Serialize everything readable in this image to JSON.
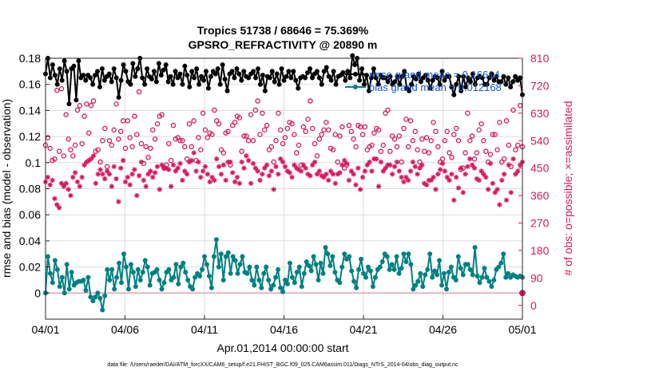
{
  "chart_data": {
    "type": "line",
    "title_line1": "Tropics 51738 / 68646 = 75.369%",
    "title_line2": "GPSRO_REFRACTIVITY @ 20890 m",
    "xlabel": "Apr.01,2014 00:00:00 start",
    "ylabel_left": "rmse and bias (model - observation)",
    "ylabel_right": "# of obs: o=possible; ×=assimilated",
    "footnote": "data file: /Users/raeder/DAI/ATM_forcXX/CAM6_setup/f.e21.FHIST_BGC.f09_025.CAM6assim.011/Diags_NTrS_2014-04/obs_diag_output.nc",
    "xlim": [
      0,
      30
    ],
    "ylim_left": [
      -0.02,
      0.18
    ],
    "ylim_right": [
      -45,
      810
    ],
    "x_ticks": [
      0,
      5,
      10,
      15,
      20,
      25,
      30
    ],
    "x_tick_labels": [
      "04/01",
      "04/06",
      "04/11",
      "04/16",
      "04/21",
      "04/26",
      "05/01"
    ],
    "y_ticks_left": [
      0,
      0.02,
      0.04,
      0.06,
      0.08,
      0.1,
      0.12,
      0.14,
      0.16,
      0.18
    ],
    "y_tick_labels_left": [
      "0",
      "0.02",
      "0.04",
      "0.06",
      "0.08",
      "0.1",
      "0.12",
      "0.14",
      "0.16",
      "0.18"
    ],
    "y_ticks_right": [
      0,
      90,
      180,
      270,
      360,
      450,
      540,
      630,
      720,
      810
    ],
    "y_tick_labels_right": [
      "0",
      "90",
      "180",
      "270",
      "360",
      "450",
      "540",
      "630",
      "720",
      "810"
    ],
    "grid": true,
    "legend_position": "top-right",
    "legend": [
      {
        "name": "rmse grand mean = 0.16614",
        "color": "#000000"
      },
      {
        "name": "bias grand mean = 0.012168",
        "color": "#008080"
      }
    ],
    "series": [
      {
        "name": "rmse",
        "axis": "left",
        "color": "#000000",
        "marker": "dot",
        "values": [
          0.168,
          0.18,
          0.165,
          0.175,
          0.167,
          0.16,
          0.172,
          0.163,
          0.178,
          0.17,
          0.145,
          0.172,
          0.174,
          0.148,
          0.178,
          0.165,
          0.167,
          0.163,
          0.167,
          0.165,
          0.16,
          0.167,
          0.17,
          0.158,
          0.172,
          0.163,
          0.166,
          0.168,
          0.162,
          0.172,
          0.165,
          0.15,
          0.163,
          0.175,
          0.17,
          0.162,
          0.16,
          0.176,
          0.166,
          0.172,
          0.18,
          0.165,
          0.16,
          0.172,
          0.166,
          0.164,
          0.17,
          0.162,
          0.176,
          0.167,
          0.171,
          0.175,
          0.162,
          0.166,
          0.16,
          0.17,
          0.165,
          0.168,
          0.16,
          0.174,
          0.167,
          0.158,
          0.17,
          0.165,
          0.172,
          0.16,
          0.166,
          0.163,
          0.17,
          0.157,
          0.166,
          0.17,
          0.168,
          0.172,
          0.16,
          0.175,
          0.164,
          0.155,
          0.168,
          0.17,
          0.165,
          0.172,
          0.168,
          0.163,
          0.17,
          0.166,
          0.165,
          0.168,
          0.17,
          0.165,
          0.172,
          0.16,
          0.167,
          0.155,
          0.166,
          0.165,
          0.17,
          0.162,
          0.168,
          0.16,
          0.172,
          0.163,
          0.166,
          0.17,
          0.165,
          0.17,
          0.163,
          0.157,
          0.165,
          0.166,
          0.165,
          0.169,
          0.172,
          0.165,
          0.168,
          0.17,
          0.165,
          0.16,
          0.17,
          0.173,
          0.166,
          0.163,
          0.17,
          0.16,
          0.166,
          0.167,
          0.169,
          0.163,
          0.17,
          0.165,
          0.182,
          0.175,
          0.18,
          0.163,
          0.172,
          0.16,
          0.167,
          0.155,
          0.165,
          0.172,
          0.165,
          0.16,
          0.167,
          0.165,
          0.165,
          0.162,
          0.166,
          0.16,
          0.162,
          0.166,
          0.16,
          0.166,
          0.17,
          0.157,
          0.155,
          0.16,
          0.166,
          0.164,
          0.168,
          0.162,
          0.165,
          0.167,
          0.163,
          0.157,
          0.163,
          0.166,
          0.165,
          0.16,
          0.17,
          0.163,
          0.166,
          0.166,
          0.158,
          0.152,
          0.16,
          0.166,
          0.155,
          0.166,
          0.158,
          0.165,
          0.162,
          0.168,
          0.16,
          0.165,
          0.166,
          0.165,
          0.16,
          0.16,
          0.165,
          0.168,
          0.163,
          0.166,
          0.162,
          0.162,
          0.166,
          0.16,
          0.165,
          0.158,
          0.162,
          0.166,
          0.163,
          0.165,
          0.152
        ]
      },
      {
        "name": "bias",
        "axis": "left",
        "color": "#008080",
        "marker": "dot",
        "values": [
          0.0,
          0.028,
          0.015,
          0.008,
          0.025,
          0.018,
          0.005,
          0.012,
          0.0,
          0.022,
          0.003,
          0.016,
          0.006,
          0.008,
          0.009,
          0.009,
          0.01,
          0.002,
          0.012,
          -0.003,
          -0.006,
          -0.003,
          0.0,
          -0.004,
          -0.013,
          -0.002,
          0.018,
          0.01,
          0.018,
          0.003,
          0.012,
          0.023,
          0.008,
          0.03,
          0.02,
          0.003,
          0.022,
          0.016,
          0.005,
          0.018,
          0.01,
          0.016,
          0.025,
          0.02,
          0.006,
          0.015,
          0.016,
          0.018,
          0.01,
          0.003,
          0.008,
          0.016,
          0.018,
          0.01,
          0.012,
          0.022,
          0.007,
          0.02,
          0.023,
          0.016,
          0.01,
          0.005,
          0.003,
          0.012,
          0.015,
          0.013,
          0.018,
          0.028,
          0.022,
          0.013,
          0.004,
          0.028,
          0.041,
          0.02,
          0.03,
          0.01,
          0.028,
          0.031,
          0.015,
          0.028,
          0.025,
          0.015,
          0.022,
          0.028,
          0.016,
          0.015,
          0.02,
          0.01,
          0.006,
          0.02,
          0.01,
          0.004,
          0.015,
          0.02,
          0.01,
          0.003,
          0.006,
          0.012,
          0.018,
          0.004,
          0.001,
          0.01,
          0.007,
          0.023,
          0.012,
          0.008,
          0.016,
          0.02,
          0.005,
          0.015,
          0.024,
          0.021,
          0.017,
          0.028,
          0.022,
          0.01,
          0.023,
          0.015,
          0.035,
          0.03,
          0.021,
          0.028,
          0.016,
          0.01,
          0.008,
          0.02,
          0.03,
          0.026,
          0.028,
          0.017,
          0.009,
          0.004,
          0.018,
          0.026,
          0.015,
          0.012,
          0.02,
          0.017,
          0.005,
          0.012,
          0.018,
          0.02,
          0.024,
          0.03,
          0.028,
          0.018,
          0.022,
          0.018,
          0.028,
          0.015,
          0.019,
          0.03,
          0.024,
          0.03,
          0.022,
          0.003,
          0.006,
          0.009,
          0.015,
          0.005,
          0.014,
          0.018,
          0.03,
          0.012,
          0.017,
          0.014,
          0.025,
          0.006,
          0.015,
          0.003,
          0.016,
          0.02,
          0.012,
          0.01,
          0.028,
          0.019,
          0.014,
          0.022,
          0.022,
          0.018,
          0.014,
          0.035,
          0.013,
          0.008,
          0.012,
          0.019,
          0.012,
          0.009,
          0.005,
          0.01,
          0.018,
          0.02,
          0.023,
          0.03,
          0.012,
          0.015,
          0.012,
          0.014,
          0.013,
          0.012,
          0.013,
          0.012
        ]
      },
      {
        "name": "# obs possible",
        "axis": "right",
        "color": "#d6185e",
        "marker": "circle",
        "values": [
          525,
          550,
          515,
          475,
          480,
          705,
          505,
          710,
          490,
          625,
          545,
          510,
          490,
          525,
          640,
          655,
          530,
          620,
          660,
          565,
          655,
          670,
          505,
          510,
          470,
          540,
          580,
          455,
          540,
          525,
          575,
          660,
          545,
          570,
          605,
          515,
          605,
          550,
          520,
          620,
          560,
          700,
          530,
          465,
          520,
          485,
          515,
          575,
          545,
          595,
          620,
          625,
          450,
          460,
          530,
          475,
          590,
          545,
          550,
          540,
          540,
          520,
          480,
          595,
          520,
          605,
          475,
          550,
          510,
          630,
          575,
          550,
          565,
          560,
          640,
          605,
          595,
          510,
          500,
          565,
          570,
          460,
          590,
          600,
          620,
          615,
          505,
          555,
          555,
          540,
          625,
          540,
          640,
          670,
          560,
          630,
          575,
          590,
          510,
          520,
          470,
          540,
          630,
          575,
          530,
          550,
          580,
          600,
          595,
          560,
          500,
          525,
          460,
          585,
          570,
          610,
          670,
          580,
          530,
          490,
          545,
          560,
          575,
          600,
          575,
          515,
          510,
          560,
          470,
          555,
          585,
          450,
          460,
          590,
          570,
          545,
          520,
          590,
          585,
          560,
          585,
          510,
          520,
          525,
          565,
          580,
          575,
          505,
          525,
          630,
          640,
          505,
          555,
          545,
          520,
          555,
          470,
          580,
          610,
          520,
          605,
          540,
          570,
          510,
          470,
          545,
          505,
          550,
          500,
          540,
          600,
          570,
          520,
          470,
          480,
          540,
          570,
          500,
          485,
          560,
          580,
          540,
          445,
          450,
          500,
          630,
          540,
          555,
          480,
          500,
          575,
          595,
          540,
          505,
          470,
          495,
          560,
          560,
          510,
          600,
          470,
          480,
          605,
          525,
          455,
          640,
          510,
          525,
          655,
          520
        ]
      },
      {
        "name": "# obs assimilated",
        "axis": "right",
        "color": "#d6185e",
        "marker": "asterisk",
        "values": [
          405,
          420,
          395,
          410,
          350,
          330,
          320,
          400,
          390,
          400,
          380,
          360,
          420,
          435,
          405,
          390,
          420,
          460,
          470,
          475,
          480,
          490,
          400,
          430,
          445,
          430,
          415,
          440,
          430,
          390,
          455,
          415,
          340,
          450,
          475,
          405,
          420,
          395,
          430,
          445,
          360,
          425,
          470,
          410,
          390,
          430,
          440,
          420,
          435,
          455,
          380,
          460,
          450,
          450,
          445,
          390,
          460,
          440,
          450,
          465,
          410,
          440,
          430,
          470,
          475,
          500,
          440,
          470,
          420,
          440,
          455,
          430,
          405,
          420,
          410,
          480,
          455,
          430,
          460,
          410,
          470,
          470,
          435,
          405,
          420,
          400,
          470,
          450,
          490,
          475,
          400,
          465,
          450,
          440,
          410,
          430,
          450,
          460,
          425,
          440,
          380,
          455,
          430,
          480,
          470,
          455,
          440,
          435,
          420,
          460,
          450,
          445,
          440,
          460,
          450,
          430,
          425,
          460,
          470,
          430,
          440,
          425,
          420,
          430,
          410,
          440,
          430,
          400,
          430,
          435,
          460,
          475,
          465,
          410,
          440,
          430,
          395,
          450,
          380,
          420,
          440,
          460,
          470,
          440,
          480,
          480,
          390,
          470,
          440,
          450,
          460,
          460,
          430,
          455,
          470,
          440,
          420,
          405,
          420,
          410,
          440,
          470,
          455,
          430,
          450,
          460,
          400,
          395,
          410,
          410,
          420,
          380,
          430,
          445,
          465,
          440,
          420,
          410,
          430,
          345,
          420,
          385,
          450,
          370,
          430,
          455,
          480,
          460,
          450,
          415,
          410,
          440,
          430,
          420,
          380,
          465,
          400,
          370,
          380,
          330,
          410,
          430,
          345,
          460,
          370,
          480,
          430,
          440,
          460,
          470
        ]
      }
    ]
  }
}
